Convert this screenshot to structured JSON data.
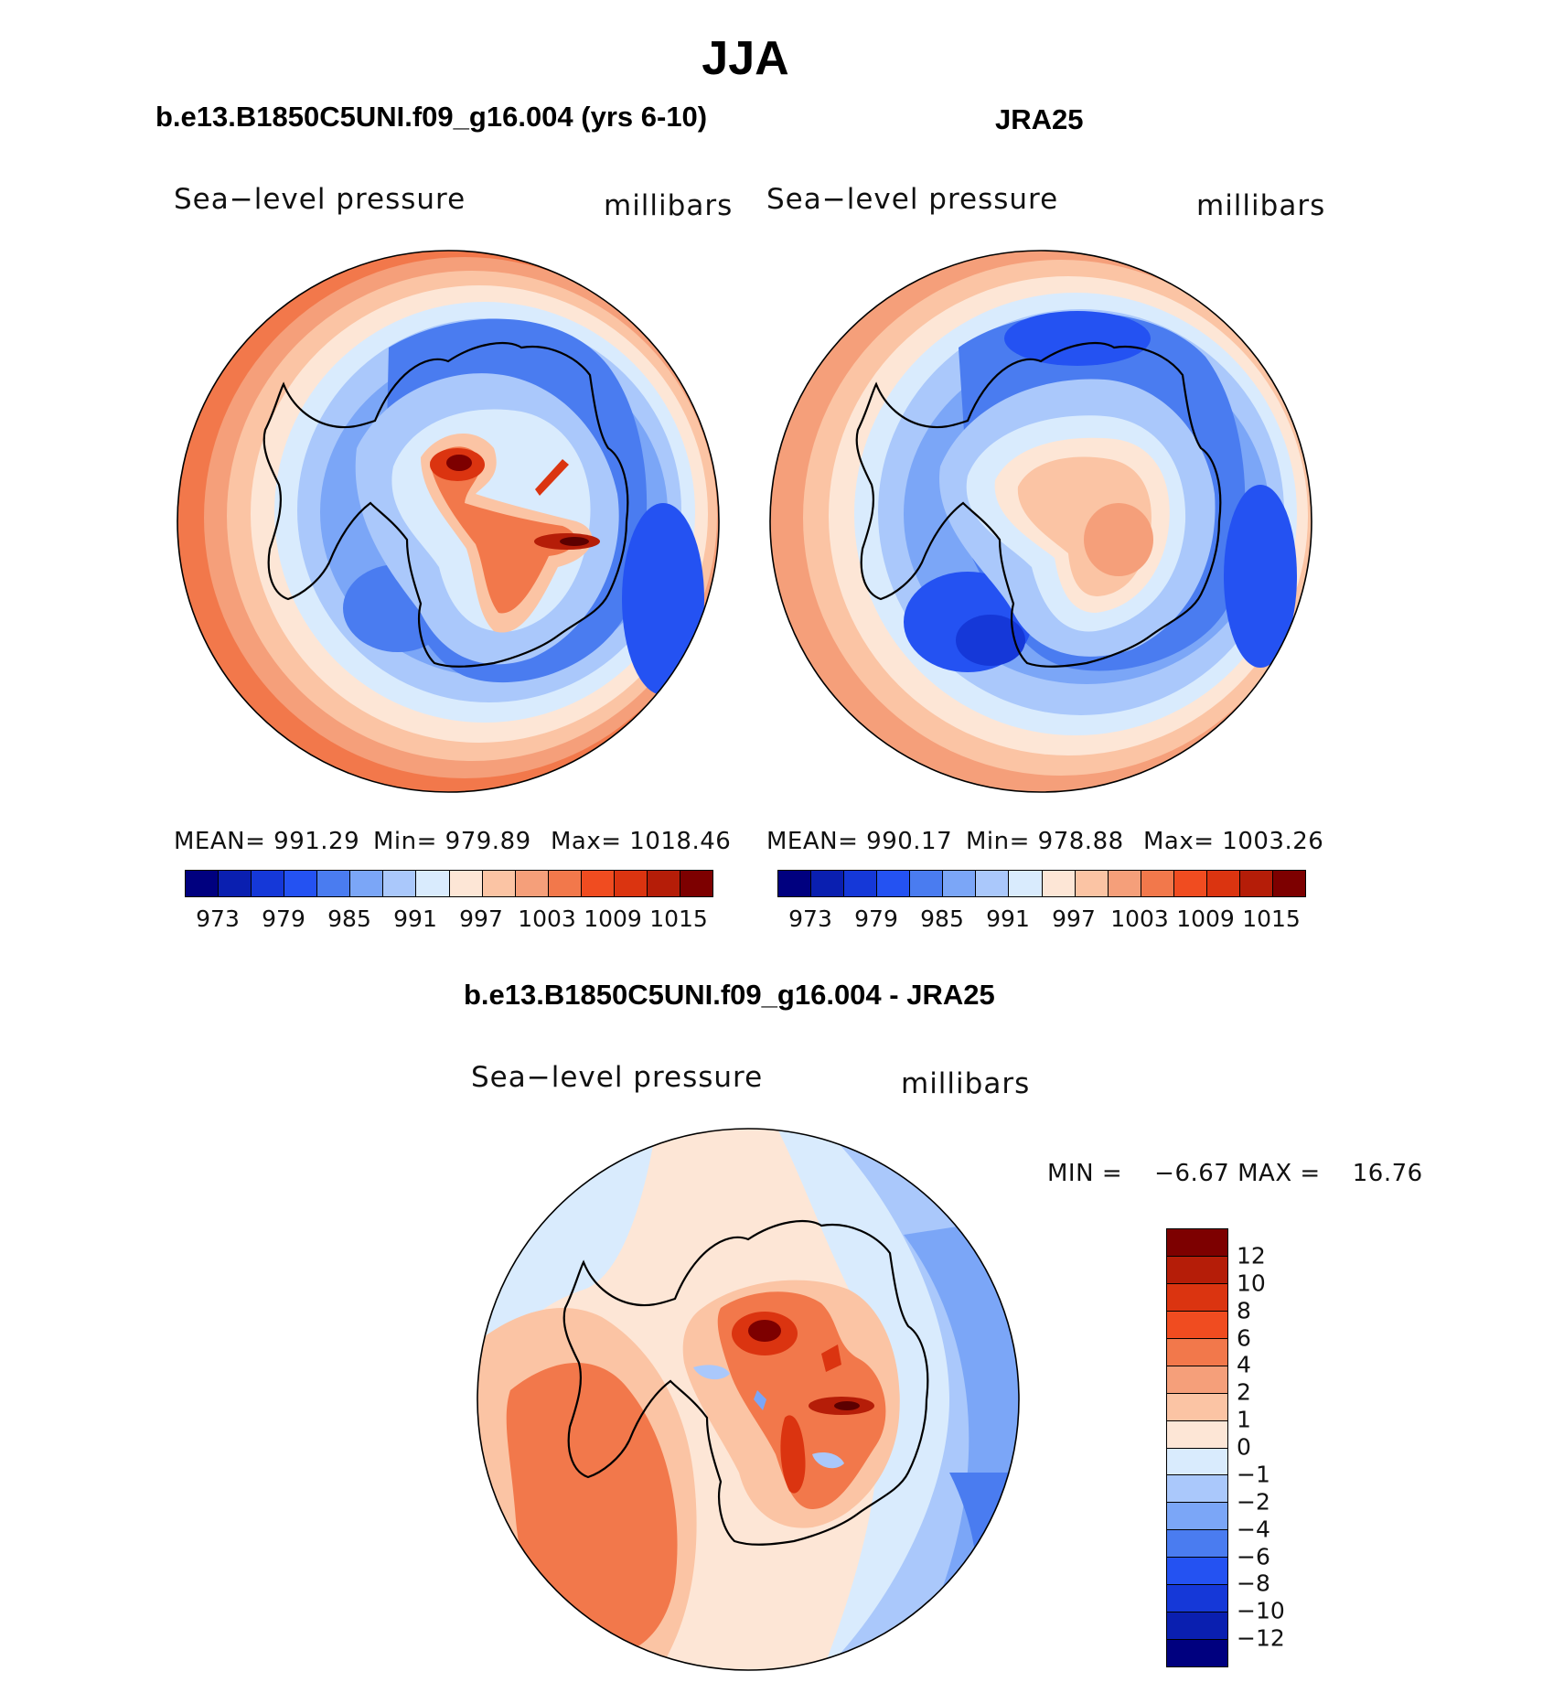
{
  "title": "JJA",
  "panels": {
    "model": {
      "title": "b.e13.B1850C5UNI.f09_g16.004 (yrs 6-10)",
      "variable": "Sea−level pressure",
      "units": "millibars",
      "mean_label": "MEAN= 991.29",
      "min_label": "Min= 979.89",
      "max_label": "Max= 1018.46"
    },
    "obs": {
      "title": "JRA25",
      "variable": "Sea−level pressure",
      "units": "millibars",
      "mean_label": "MEAN= 990.17",
      "min_label": "Min= 978.88",
      "max_label": "Max= 1003.26"
    },
    "diff": {
      "title": "b.e13.B1850C5UNI.f09_g16.004 - JRA25",
      "variable": "Sea−level pressure",
      "units": "millibars",
      "minmax_label": "MIN =    −6.67 MAX =    16.76"
    }
  },
  "colorbar_top": {
    "colors": [
      "#00007f",
      "#0a1fb0",
      "#1538d8",
      "#2452f2",
      "#4a7cf0",
      "#7ba6f7",
      "#aac8fb",
      "#d9ebfd",
      "#fde6d6",
      "#fbc4a4",
      "#f59f7a",
      "#f2784b",
      "#f04c20",
      "#db3410",
      "#b51d08",
      "#7d0000"
    ],
    "tick_labels": [
      "973",
      "979",
      "985",
      "991",
      "997",
      "1003",
      "1009",
      "1015"
    ]
  },
  "colorbar_diff": {
    "colors": [
      "#7d0000",
      "#b51d08",
      "#db3410",
      "#f04c20",
      "#f2784b",
      "#f59f7a",
      "#fbc4a4",
      "#fde6d6",
      "#d9ebfd",
      "#aac8fb",
      "#7ba6f7",
      "#4a7cf0",
      "#2452f2",
      "#1538d8",
      "#0a1fb0",
      "#00007f"
    ],
    "tick_labels": [
      "12",
      "10",
      "8",
      "6",
      "4",
      "2",
      "1",
      "0",
      "−1",
      "−2",
      "−4",
      "−6",
      "−8",
      "−10",
      "−12"
    ]
  }
}
